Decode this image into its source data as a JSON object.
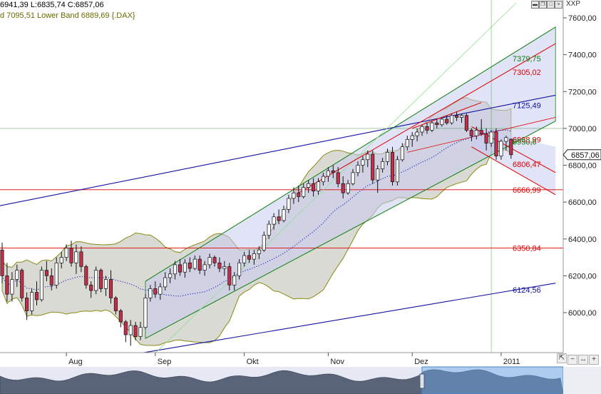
{
  "header": {
    "line1": "6941,39 L:6835,74 C:6857,06",
    "line2": "d 7095,51 Lower Band 6889,69 {.DAX}",
    "symbol": "XXP",
    "price_tag": "6857,06"
  },
  "colors": {
    "candle_up": "#ffffff",
    "candle_down": "#c0304a",
    "bollinger_fill": "#d4d3cc",
    "bollinger_line": "#8a8a14",
    "channel_fill": "#c8ccf0",
    "red_line": "#e00000",
    "blue_line": "#1010a0",
    "green_line": "#108010",
    "light_green_line": "#90e090",
    "moving_average": "#2020c0"
  },
  "chart_data": {
    "type": "candlestick",
    "instrument": ".DAX",
    "y_ticks": [
      "7600,00",
      "7400,00",
      "7200,00",
      "7000,00",
      "6800,00",
      "6600,00",
      "6400,00",
      "6200,00",
      "6000,00"
    ],
    "ylim": [
      5780,
      7680
    ],
    "x_labels": [
      "Aug",
      "Sep",
      "Okt",
      "Nov",
      "Dez",
      "2011"
    ],
    "levels": [
      {
        "label": "7379,75",
        "value": 7379.75,
        "color": "#108010"
      },
      {
        "label": "7305,02",
        "value": 7305.02,
        "color": "#e00000"
      },
      {
        "label": "7125,49",
        "value": 7125.49,
        "color": "#1010a0"
      },
      {
        "label": "6938,99",
        "value": 6938.99,
        "color": "#e00000"
      },
      {
        "label": "6950,6",
        "value": 6950.6,
        "color": "#108010"
      },
      {
        "label": "6806,47",
        "value": 6806.47,
        "color": "#e00000"
      },
      {
        "label": "6666,99",
        "value": 6666.99,
        "color": "#e00000"
      },
      {
        "label": "6350,84",
        "value": 6350.84,
        "color": "#e00000"
      },
      {
        "label": "6124,56",
        "value": 6124.56,
        "color": "#1010a0"
      }
    ],
    "last_close": 6857.06,
    "candles": [
      {
        "o": 6340,
        "h": 6380,
        "l": 6160,
        "c": 6200
      },
      {
        "o": 6200,
        "h": 6270,
        "l": 6060,
        "c": 6100
      },
      {
        "o": 6100,
        "h": 6220,
        "l": 6060,
        "c": 6180
      },
      {
        "o": 6180,
        "h": 6260,
        "l": 6140,
        "c": 6230
      },
      {
        "o": 6230,
        "h": 6240,
        "l": 6060,
        "c": 6080
      },
      {
        "o": 6080,
        "h": 6110,
        "l": 5960,
        "c": 6010
      },
      {
        "o": 6010,
        "h": 6130,
        "l": 5990,
        "c": 6110
      },
      {
        "o": 6110,
        "h": 6170,
        "l": 6040,
        "c": 6070
      },
      {
        "o": 6070,
        "h": 6250,
        "l": 6060,
        "c": 6230
      },
      {
        "o": 6230,
        "h": 6280,
        "l": 6170,
        "c": 6200
      },
      {
        "o": 6200,
        "h": 6240,
        "l": 6120,
        "c": 6150
      },
      {
        "o": 6150,
        "h": 6300,
        "l": 6130,
        "c": 6270
      },
      {
        "o": 6270,
        "h": 6330,
        "l": 6240,
        "c": 6300
      },
      {
        "o": 6300,
        "h": 6370,
        "l": 6280,
        "c": 6350
      },
      {
        "o": 6350,
        "h": 6390,
        "l": 6250,
        "c": 6270
      },
      {
        "o": 6270,
        "h": 6370,
        "l": 6210,
        "c": 6330
      },
      {
        "o": 6330,
        "h": 6360,
        "l": 6220,
        "c": 6250
      },
      {
        "o": 6250,
        "h": 6260,
        "l": 6130,
        "c": 6150
      },
      {
        "o": 6150,
        "h": 6170,
        "l": 6080,
        "c": 6120
      },
      {
        "o": 6120,
        "h": 6250,
        "l": 6100,
        "c": 6230
      },
      {
        "o": 6230,
        "h": 6240,
        "l": 6110,
        "c": 6130
      },
      {
        "o": 6130,
        "h": 6200,
        "l": 6090,
        "c": 6180
      },
      {
        "o": 6180,
        "h": 6230,
        "l": 6050,
        "c": 6080
      },
      {
        "o": 6080,
        "h": 6090,
        "l": 5990,
        "c": 6010
      },
      {
        "o": 6010,
        "h": 6020,
        "l": 5920,
        "c": 5950
      },
      {
        "o": 5950,
        "h": 5960,
        "l": 5840,
        "c": 5880
      },
      {
        "o": 5880,
        "h": 5960,
        "l": 5820,
        "c": 5930
      },
      {
        "o": 5930,
        "h": 5950,
        "l": 5850,
        "c": 5870
      },
      {
        "o": 5870,
        "h": 5950,
        "l": 5850,
        "c": 5920
      },
      {
        "o": 5920,
        "h": 6100,
        "l": 5910,
        "c": 6080
      },
      {
        "o": 6080,
        "h": 6150,
        "l": 6060,
        "c": 6130
      },
      {
        "o": 6130,
        "h": 6170,
        "l": 6080,
        "c": 6100
      },
      {
        "o": 6100,
        "h": 6160,
        "l": 6070,
        "c": 6140
      },
      {
        "o": 6140,
        "h": 6220,
        "l": 6120,
        "c": 6190
      },
      {
        "o": 6190,
        "h": 6240,
        "l": 6160,
        "c": 6210
      },
      {
        "o": 6210,
        "h": 6280,
        "l": 6180,
        "c": 6260
      },
      {
        "o": 6260,
        "h": 6290,
        "l": 6200,
        "c": 6220
      },
      {
        "o": 6220,
        "h": 6290,
        "l": 6190,
        "c": 6270
      },
      {
        "o": 6270,
        "h": 6300,
        "l": 6220,
        "c": 6240
      },
      {
        "o": 6240,
        "h": 6310,
        "l": 6230,
        "c": 6290
      },
      {
        "o": 6290,
        "h": 6310,
        "l": 6210,
        "c": 6230
      },
      {
        "o": 6230,
        "h": 6280,
        "l": 6200,
        "c": 6260
      },
      {
        "o": 6260,
        "h": 6320,
        "l": 6240,
        "c": 6300
      },
      {
        "o": 6300,
        "h": 6310,
        "l": 6250,
        "c": 6270
      },
      {
        "o": 6270,
        "h": 6300,
        "l": 6220,
        "c": 6240
      },
      {
        "o": 6240,
        "h": 6280,
        "l": 6200,
        "c": 6250
      },
      {
        "o": 6250,
        "h": 6270,
        "l": 6120,
        "c": 6150
      },
      {
        "o": 6150,
        "h": 6220,
        "l": 6120,
        "c": 6200
      },
      {
        "o": 6200,
        "h": 6290,
        "l": 6180,
        "c": 6270
      },
      {
        "o": 6270,
        "h": 6330,
        "l": 6250,
        "c": 6310
      },
      {
        "o": 6310,
        "h": 6340,
        "l": 6270,
        "c": 6290
      },
      {
        "o": 6290,
        "h": 6340,
        "l": 6260,
        "c": 6320
      },
      {
        "o": 6320,
        "h": 6360,
        "l": 6290,
        "c": 6340
      },
      {
        "o": 6340,
        "h": 6440,
        "l": 6330,
        "c": 6420
      },
      {
        "o": 6420,
        "h": 6500,
        "l": 6400,
        "c": 6480
      },
      {
        "o": 6480,
        "h": 6540,
        "l": 6450,
        "c": 6520
      },
      {
        "o": 6520,
        "h": 6560,
        "l": 6480,
        "c": 6500
      },
      {
        "o": 6500,
        "h": 6580,
        "l": 6490,
        "c": 6560
      },
      {
        "o": 6560,
        "h": 6640,
        "l": 6540,
        "c": 6620
      },
      {
        "o": 6620,
        "h": 6680,
        "l": 6590,
        "c": 6650
      },
      {
        "o": 6650,
        "h": 6690,
        "l": 6600,
        "c": 6630
      },
      {
        "o": 6630,
        "h": 6700,
        "l": 6620,
        "c": 6680
      },
      {
        "o": 6680,
        "h": 6720,
        "l": 6650,
        "c": 6700
      },
      {
        "o": 6700,
        "h": 6730,
        "l": 6630,
        "c": 6660
      },
      {
        "o": 6660,
        "h": 6730,
        "l": 6640,
        "c": 6710
      },
      {
        "o": 6710,
        "h": 6760,
        "l": 6690,
        "c": 6740
      },
      {
        "o": 6740,
        "h": 6790,
        "l": 6710,
        "c": 6770
      },
      {
        "o": 6770,
        "h": 6800,
        "l": 6730,
        "c": 6760
      },
      {
        "o": 6760,
        "h": 6790,
        "l": 6680,
        "c": 6700
      },
      {
        "o": 6700,
        "h": 6740,
        "l": 6620,
        "c": 6650
      },
      {
        "o": 6650,
        "h": 6720,
        "l": 6640,
        "c": 6700
      },
      {
        "o": 6700,
        "h": 6780,
        "l": 6690,
        "c": 6760
      },
      {
        "o": 6760,
        "h": 6820,
        "l": 6740,
        "c": 6800
      },
      {
        "o": 6800,
        "h": 6850,
        "l": 6760,
        "c": 6830
      },
      {
        "o": 6830,
        "h": 6880,
        "l": 6790,
        "c": 6860
      },
      {
        "o": 6860,
        "h": 6880,
        "l": 6700,
        "c": 6720
      },
      {
        "o": 6720,
        "h": 6800,
        "l": 6650,
        "c": 6780
      },
      {
        "o": 6780,
        "h": 6840,
        "l": 6760,
        "c": 6820
      },
      {
        "o": 6820,
        "h": 6890,
        "l": 6800,
        "c": 6870
      },
      {
        "o": 6870,
        "h": 6900,
        "l": 6690,
        "c": 6710
      },
      {
        "o": 6710,
        "h": 6850,
        "l": 6690,
        "c": 6830
      },
      {
        "o": 6830,
        "h": 6920,
        "l": 6820,
        "c": 6900
      },
      {
        "o": 6900,
        "h": 6960,
        "l": 6880,
        "c": 6940
      },
      {
        "o": 6940,
        "h": 6980,
        "l": 6900,
        "c": 6960
      },
      {
        "o": 6960,
        "h": 7000,
        "l": 6930,
        "c": 6980
      },
      {
        "o": 6980,
        "h": 7020,
        "l": 6960,
        "c": 7010
      },
      {
        "o": 7010,
        "h": 7030,
        "l": 6970,
        "c": 6990
      },
      {
        "o": 6990,
        "h": 7040,
        "l": 6980,
        "c": 7030
      },
      {
        "o": 7030,
        "h": 7050,
        "l": 7000,
        "c": 7020
      },
      {
        "o": 7020,
        "h": 7060,
        "l": 7010,
        "c": 7050
      },
      {
        "o": 7050,
        "h": 7070,
        "l": 7020,
        "c": 7030
      },
      {
        "o": 7030,
        "h": 7080,
        "l": 7020,
        "c": 7070
      },
      {
        "o": 7070,
        "h": 7090,
        "l": 7040,
        "c": 7060
      },
      {
        "o": 7060,
        "h": 7080,
        "l": 7030,
        "c": 7070
      },
      {
        "o": 7070,
        "h": 7080,
        "l": 6980,
        "c": 6990
      },
      {
        "o": 6990,
        "h": 7000,
        "l": 6930,
        "c": 6960
      },
      {
        "o": 6960,
        "h": 7010,
        "l": 6940,
        "c": 6990
      },
      {
        "o": 6990,
        "h": 7050,
        "l": 6960,
        "c": 6970
      },
      {
        "o": 6970,
        "h": 7000,
        "l": 6880,
        "c": 6920
      },
      {
        "o": 6920,
        "h": 6990,
        "l": 6900,
        "c": 6980
      },
      {
        "o": 6980,
        "h": 7000,
        "l": 6830,
        "c": 6850
      },
      {
        "o": 6850,
        "h": 6940,
        "l": 6830,
        "c": 6930
      },
      {
        "o": 6930,
        "h": 6960,
        "l": 6880,
        "c": 6950
      },
      {
        "o": 6941.39,
        "h": 6945,
        "l": 6835.74,
        "c": 6857.06
      }
    ]
  }
}
